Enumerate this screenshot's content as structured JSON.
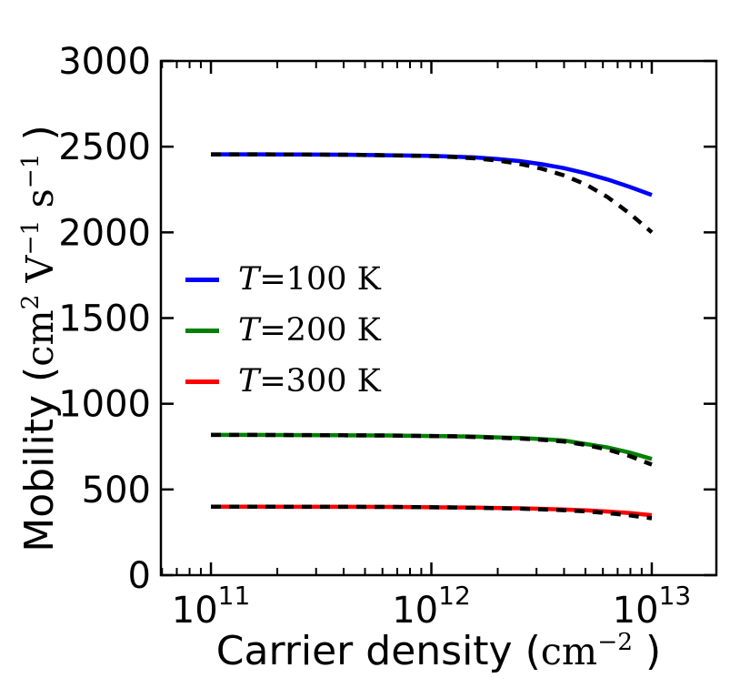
{
  "chart_data": {
    "type": "line",
    "title": "",
    "x_scale": "log",
    "x_log_range": [
      10.773,
      13.293
    ],
    "ylim": [
      0,
      3000
    ],
    "grid": false,
    "xlabel": {
      "prefix": "Carrier density (",
      "unit": "cm",
      "exponent": "−2",
      "suffix": " )"
    },
    "ylabel": {
      "prefix": "Mobility (",
      "u1": "cm",
      "e1": "2",
      "u2": " V",
      "e2": "−1",
      "u3": " s",
      "e3": "−1",
      "suffix": " )"
    },
    "yticks": [
      0,
      500,
      1000,
      1500,
      2000,
      2500,
      3000
    ],
    "xticks": [
      {
        "log": 11,
        "base": "10",
        "exp": "11"
      },
      {
        "log": 12,
        "base": "10",
        "exp": "12"
      },
      {
        "log": 13,
        "base": "10",
        "exp": "13"
      }
    ],
    "x_log10": [
      11.0,
      11.2,
      11.4,
      11.6,
      11.8,
      12.0,
      12.1,
      12.2,
      12.3,
      12.4,
      12.5,
      12.6,
      12.7,
      12.8,
      12.9,
      13.0
    ],
    "series": [
      {
        "name": "T=100 K",
        "color": "#0000ff",
        "style": "solid",
        "values": [
          2455,
          2455,
          2454,
          2453,
          2450,
          2446,
          2442,
          2437,
          2428,
          2416,
          2398,
          2375,
          2345,
          2308,
          2265,
          2218
        ]
      },
      {
        "name": "T=100 K dashed fit",
        "color": "#000000",
        "style": "dashed",
        "values": [
          2455,
          2455,
          2454,
          2453,
          2450,
          2445,
          2440,
          2432,
          2419,
          2400,
          2372,
          2333,
          2280,
          2205,
          2110,
          2000
        ]
      },
      {
        "name": "T=200 K",
        "color": "#008000",
        "style": "solid",
        "values": [
          818,
          818,
          817,
          816,
          815,
          812,
          810,
          808,
          804,
          800,
          794,
          786,
          765,
          745,
          715,
          678
        ]
      },
      {
        "name": "T=200 K dashed fit",
        "color": "#000000",
        "style": "dashed",
        "values": [
          818,
          818,
          817,
          816,
          815,
          812,
          810,
          806,
          802,
          797,
          790,
          780,
          760,
          733,
          695,
          645
        ]
      },
      {
        "name": "T=300 K",
        "color": "#ff0000",
        "style": "solid",
        "values": [
          400,
          400,
          399,
          399,
          398,
          396,
          395,
          394,
          392,
          390,
          387,
          383,
          378,
          371,
          362,
          350
        ]
      },
      {
        "name": "T=300 K dashed fit",
        "color": "#000000",
        "style": "dashed",
        "values": [
          400,
          400,
          399,
          399,
          398,
          396,
          395,
          393,
          391,
          388,
          384,
          379,
          372,
          362,
          349,
          332
        ]
      }
    ],
    "legend": {
      "position": "center-left",
      "frame": false,
      "entries": [
        {
          "label": "T=100 K",
          "color": "#0000ff"
        },
        {
          "label": "T=200 K",
          "color": "#008000"
        },
        {
          "label": "T=300 K",
          "color": "#ff0000"
        }
      ]
    },
    "colors": {
      "axis": "#000000",
      "background": "#ffffff"
    }
  }
}
